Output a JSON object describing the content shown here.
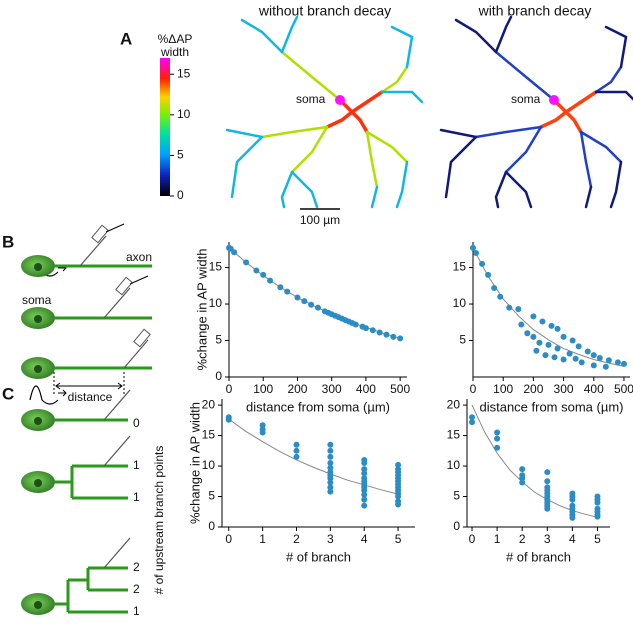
{
  "panel_labels": [
    "A",
    "B",
    "C"
  ],
  "panel_a": {
    "titles": [
      "without branch decay",
      "with branch decay"
    ],
    "colorbar": {
      "label": [
        "%ΔAP",
        "width"
      ],
      "lim": [
        0,
        17
      ],
      "ticks": [
        0,
        5,
        10,
        15
      ]
    },
    "soma_labels": [
      "soma",
      "soma"
    ],
    "scale_bar": "100 µm"
  },
  "panel_b_schematic": {
    "axon": "axon",
    "soma": "soma",
    "distance": "distance"
  },
  "panel_c_schematic": {
    "branch_counts": [
      0,
      1,
      1,
      2,
      2,
      1
    ],
    "axis_label": "# of upstream branch points"
  },
  "chart_data": [
    {
      "type": "scatter",
      "ylabel": "%change in AP width",
      "xlabel": "distance from soma (µm)",
      "color": "#2b8cc6",
      "x": [
        0,
        5,
        15,
        50,
        80,
        100,
        120,
        150,
        170,
        200,
        220,
        240,
        260,
        280,
        290,
        300,
        310,
        320,
        330,
        340,
        350,
        360,
        370,
        390,
        400,
        420,
        440,
        460,
        480,
        500
      ],
      "values": [
        17.7,
        17.6,
        17.1,
        15.7,
        14.6,
        14.0,
        13.2,
        12.3,
        11.7,
        10.9,
        10.4,
        9.9,
        9.5,
        9.0,
        8.8,
        8.6,
        8.4,
        8.2,
        8.0,
        7.8,
        7.6,
        7.4,
        7.2,
        6.9,
        6.7,
        6.4,
        6.1,
        5.8,
        5.5,
        5.3
      ],
      "fit": {
        "color": "#888888",
        "x": [
          0,
          50,
          100,
          150,
          200,
          250,
          300,
          350,
          400,
          450,
          500
        ],
        "values": [
          17.7,
          15.7,
          13.9,
          12.3,
          10.9,
          9.7,
          8.6,
          7.6,
          6.8,
          6.0,
          5.3
        ]
      },
      "xlim": [
        0,
        520
      ],
      "xticks": [
        0,
        100,
        200,
        300,
        400,
        500
      ],
      "ylim": [
        0,
        18.5
      ],
      "yticks": [
        0,
        5,
        10,
        15
      ]
    },
    {
      "type": "scatter",
      "xlabel": "distance from soma (µm)",
      "color": "#2b8cc6",
      "x": [
        0,
        10,
        30,
        50,
        70,
        90,
        120,
        150,
        160,
        180,
        200,
        200,
        210,
        220,
        230,
        240,
        250,
        260,
        270,
        280,
        280,
        300,
        300,
        320,
        330,
        340,
        350,
        360,
        380,
        400,
        400,
        420,
        440,
        450,
        480,
        500
      ],
      "values": [
        17.7,
        17.0,
        15.5,
        14.0,
        12.2,
        11.0,
        9.5,
        9.3,
        7.2,
        6.0,
        8.3,
        5.5,
        3.6,
        4.7,
        7.6,
        3.0,
        4.4,
        7.0,
        2.7,
        3.9,
        6.6,
        2.4,
        5.5,
        3.2,
        5.0,
        2.5,
        4.2,
        2.0,
        3.5,
        1.6,
        3.0,
        2.6,
        1.4,
        2.3,
        2.0,
        1.8
      ],
      "fit": {
        "color": "#888888",
        "x": [
          0,
          50,
          100,
          150,
          200,
          250,
          300,
          350,
          400,
          450,
          500
        ],
        "values": [
          17.7,
          13.8,
          10.7,
          8.4,
          6.5,
          5.1,
          3.9,
          3.1,
          2.4,
          1.9,
          1.45
        ]
      },
      "xlim": [
        0,
        520
      ],
      "xticks": [
        0,
        100,
        200,
        300,
        400,
        500
      ],
      "ylim": [
        0,
        18.5
      ],
      "yticks": [
        5,
        10,
        15
      ]
    },
    {
      "type": "scatter",
      "ylabel": "%change in AP width",
      "xlabel": "# of branch",
      "color": "#2b8cc6",
      "x": [
        0,
        0,
        1,
        1,
        1,
        2,
        2,
        2,
        3,
        3,
        3,
        3,
        3,
        3,
        3,
        3,
        3,
        3,
        3,
        4,
        4,
        4,
        4,
        4,
        4,
        4,
        4,
        4,
        4,
        4,
        4,
        5,
        5,
        5,
        5,
        5,
        5,
        5,
        5,
        5,
        5,
        5,
        5,
        5
      ],
      "values": [
        17.6,
        18.0,
        16.7,
        16.0,
        15.5,
        13.5,
        12.5,
        11.5,
        13.5,
        12.5,
        11.5,
        10.5,
        9.7,
        9.0,
        8.5,
        8.0,
        7.3,
        6.5,
        5.8,
        11.0,
        10.5,
        9.5,
        8.8,
        8.0,
        7.5,
        7.0,
        6.5,
        6.0,
        5.3,
        4.5,
        3.5,
        10.2,
        9.5,
        9.0,
        8.5,
        8.0,
        7.5,
        7.0,
        6.5,
        6.0,
        5.5,
        5.0,
        4.2,
        3.7
      ],
      "fit": {
        "color": "#888888",
        "x": [
          0,
          0.5,
          1,
          1.5,
          2,
          2.5,
          3,
          3.5,
          4,
          4.5,
          5
        ],
        "values": [
          17.7,
          15.7,
          14.0,
          12.4,
          11.0,
          9.8,
          8.7,
          7.7,
          6.9,
          6.1,
          5.4
        ]
      },
      "xlim": [
        -0.2,
        5.5
      ],
      "xticks": [
        0,
        1,
        2,
        3,
        4,
        5
      ],
      "ylim": [
        0,
        21
      ],
      "yticks": [
        0,
        5,
        10,
        15,
        20
      ]
    },
    {
      "type": "scatter",
      "xlabel": "# of branch",
      "color": "#2b8cc6",
      "x": [
        0,
        0,
        1,
        1,
        1,
        2,
        2,
        2,
        2,
        3,
        3,
        3,
        3,
        3,
        3,
        3,
        3,
        3,
        3,
        4,
        4,
        4,
        4,
        4,
        4,
        4,
        4,
        5,
        5,
        5,
        5,
        5,
        5,
        5
      ],
      "values": [
        18.0,
        17.2,
        15.5,
        14.5,
        13.0,
        9.5,
        8.5,
        8.0,
        7.3,
        9.0,
        7.5,
        6.5,
        6.0,
        5.5,
        5.0,
        4.5,
        4.0,
        3.5,
        3.0,
        5.5,
        5.0,
        4.5,
        3.5,
        3.0,
        2.5,
        2.0,
        1.5,
        5.0,
        4.5,
        4.0,
        3.0,
        2.5,
        2.0,
        1.7
      ],
      "fit": {
        "color": "#888888",
        "x": [
          0,
          0.5,
          1,
          1.5,
          2,
          2.5,
          3,
          3.5,
          4,
          4.5,
          5
        ],
        "values": [
          20.0,
          15.6,
          12.1,
          9.4,
          7.4,
          5.7,
          4.5,
          3.5,
          2.7,
          2.1,
          1.6
        ]
      },
      "xlim": [
        -0.2,
        5.5
      ],
      "xticks": [
        0,
        1,
        2,
        3,
        4,
        5
      ],
      "ylim": [
        0,
        21
      ],
      "yticks": [
        0,
        5,
        10,
        15,
        20
      ]
    }
  ]
}
